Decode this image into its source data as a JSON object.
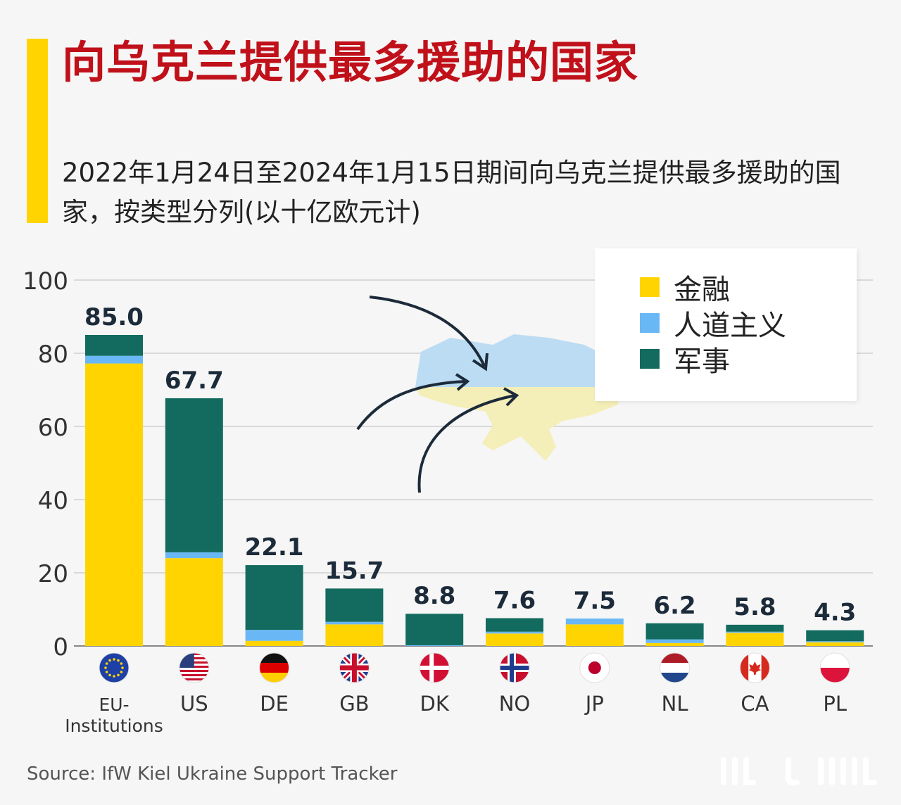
{
  "header": {
    "title": "向乌克兰提供最多援助的国家",
    "subtitle": "2022年1月24日至2024年1月15日期间向乌克兰提供最多援助的国家，按类型分列(以十亿欧元计)"
  },
  "legend": {
    "items": [
      {
        "label": "金融",
        "color": "#ffd400"
      },
      {
        "label": "人道主义",
        "color": "#6ab7f5"
      },
      {
        "label": "军事",
        "color": "#126b5e"
      }
    ]
  },
  "chart_data": {
    "type": "bar",
    "stacked": true,
    "title": "向乌克兰提供最多援助的国家",
    "xlabel": "",
    "ylabel": "",
    "ylim": [
      0,
      100
    ],
    "yticks": [
      0,
      20,
      40,
      60,
      80,
      100
    ],
    "grid": true,
    "legend_position": "top-right",
    "categories": [
      "EU-Institutions",
      "US",
      "DE",
      "GB",
      "DK",
      "NO",
      "JP",
      "NL",
      "CA",
      "PL"
    ],
    "category_labels": [
      "EU-\nInstitutions",
      "US",
      "DE",
      "GB",
      "DK",
      "NO",
      "JP",
      "NL",
      "CA",
      "PL"
    ],
    "flags": [
      "eu-flag-icon",
      "us-flag-icon",
      "de-flag-icon",
      "gb-flag-icon",
      "dk-flag-icon",
      "no-flag-icon",
      "jp-flag-icon",
      "nl-flag-icon",
      "ca-flag-icon",
      "pl-flag-icon"
    ],
    "totals": [
      "85.0",
      "67.7",
      "22.1",
      "15.7",
      "8.8",
      "7.6",
      "7.5",
      "6.2",
      "5.8",
      "4.3"
    ],
    "series": [
      {
        "name": "金融",
        "color": "#ffd400",
        "values": [
          77.2,
          24.0,
          1.4,
          5.9,
          0.0,
          3.4,
          5.9,
          0.8,
          3.6,
          1.0
        ]
      },
      {
        "name": "人道主义",
        "color": "#6ab7f5",
        "values": [
          2.1,
          1.6,
          3.0,
          0.7,
          0.2,
          0.5,
          1.6,
          1.0,
          0.3,
          0.3
        ]
      },
      {
        "name": "军事",
        "color": "#126b5e",
        "values": [
          5.7,
          42.1,
          17.7,
          9.1,
          8.6,
          3.7,
          0.0,
          4.4,
          1.9,
          3.0
        ]
      }
    ]
  },
  "footer": {
    "source": "Source: IfW Kiel Ukraine Support Tracker"
  }
}
